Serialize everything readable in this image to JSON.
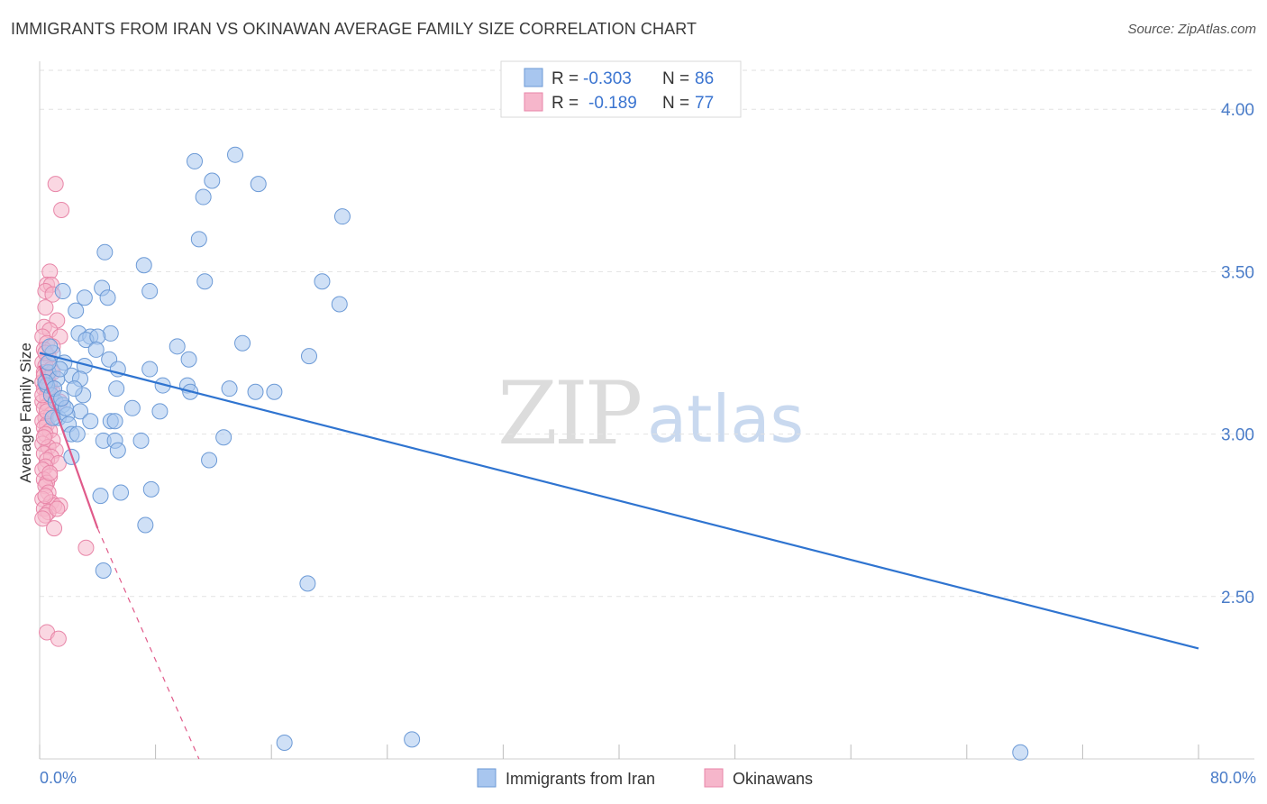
{
  "title": "IMMIGRANTS FROM IRAN VS OKINAWAN AVERAGE FAMILY SIZE CORRELATION CHART",
  "source": "Source: ZipAtlas.com",
  "watermark": {
    "zip": "ZIP",
    "atlas": "atlas"
  },
  "legend_top": {
    "rows": [
      {
        "r_label": "R =",
        "r_value": "-0.303",
        "n_label": "N =",
        "n_value": "86"
      },
      {
        "r_label": "R =",
        "r_value": "-0.189",
        "n_label": "N =",
        "n_value": "77"
      }
    ]
  },
  "legend_bottom": [
    "Immigrants from Iran",
    "Okinawans"
  ],
  "colors": {
    "blue_fill": "#a8c6ef",
    "blue_stroke": "#6c9ad6",
    "blue_line": "#2f74d0",
    "pink_fill": "#f6b6cb",
    "pink_stroke": "#e886a8",
    "pink_line": "#e05a8a",
    "grid": "#e2e2e2",
    "tick_text": "#4a7cc8"
  },
  "chart_data": {
    "type": "scatter",
    "title": "IMMIGRANTS FROM IRAN VS OKINAWAN AVERAGE FAMILY SIZE CORRELATION CHART",
    "xlabel": "",
    "ylabel": "Average Family Size",
    "xlim": [
      0,
      80
    ],
    "ylim": [
      2.0,
      4.12
    ],
    "x_tick_labels": [
      "0.0%",
      "80.0%"
    ],
    "y_ticks": [
      2.5,
      3.0,
      3.5,
      4.0
    ],
    "y_tick_labels": [
      "2.50",
      "3.00",
      "3.50",
      "4.00"
    ],
    "grid": "horizontal dashed",
    "legend_position": "top-center",
    "series": [
      {
        "name": "Immigrants from Iran",
        "r": -0.303,
        "n": 86,
        "trend": {
          "x": [
            0,
            80
          ],
          "y": [
            3.25,
            2.34
          ],
          "style": "solid"
        },
        "points": [
          [
            10.7,
            3.84
          ],
          [
            13.5,
            3.86
          ],
          [
            11.3,
            3.73
          ],
          [
            11.9,
            3.78
          ],
          [
            15.1,
            3.77
          ],
          [
            20.9,
            3.67
          ],
          [
            11.0,
            3.6
          ],
          [
            4.5,
            3.56
          ],
          [
            7.2,
            3.52
          ],
          [
            11.4,
            3.47
          ],
          [
            19.5,
            3.47
          ],
          [
            7.6,
            3.44
          ],
          [
            4.3,
            3.45
          ],
          [
            3.1,
            3.42
          ],
          [
            1.6,
            3.44
          ],
          [
            4.7,
            3.42
          ],
          [
            20.7,
            3.4
          ],
          [
            2.5,
            3.38
          ],
          [
            2.7,
            3.31
          ],
          [
            3.5,
            3.3
          ],
          [
            4.9,
            3.31
          ],
          [
            3.2,
            3.29
          ],
          [
            4.0,
            3.3
          ],
          [
            14.0,
            3.28
          ],
          [
            9.5,
            3.27
          ],
          [
            0.9,
            3.25
          ],
          [
            18.6,
            3.24
          ],
          [
            1.7,
            3.22
          ],
          [
            2.2,
            3.18
          ],
          [
            4.8,
            3.23
          ],
          [
            10.3,
            3.23
          ],
          [
            3.1,
            3.21
          ],
          [
            5.4,
            3.2
          ],
          [
            7.6,
            3.2
          ],
          [
            0.6,
            3.19
          ],
          [
            1.2,
            3.17
          ],
          [
            2.8,
            3.17
          ],
          [
            8.5,
            3.15
          ],
          [
            10.2,
            3.15
          ],
          [
            13.1,
            3.14
          ],
          [
            5.3,
            3.14
          ],
          [
            10.4,
            3.13
          ],
          [
            14.9,
            3.13
          ],
          [
            16.2,
            3.13
          ],
          [
            0.5,
            3.15
          ],
          [
            0.8,
            3.12
          ],
          [
            3.0,
            3.12
          ],
          [
            1.1,
            3.1
          ],
          [
            1.6,
            3.09
          ],
          [
            6.4,
            3.08
          ],
          [
            2.8,
            3.07
          ],
          [
            8.3,
            3.07
          ],
          [
            1.3,
            3.05
          ],
          [
            1.9,
            3.06
          ],
          [
            4.9,
            3.04
          ],
          [
            5.2,
            3.04
          ],
          [
            3.5,
            3.04
          ],
          [
            2.0,
            3.03
          ],
          [
            2.2,
            3.0
          ],
          [
            4.4,
            2.98
          ],
          [
            5.2,
            2.98
          ],
          [
            7.0,
            2.98
          ],
          [
            12.7,
            2.99
          ],
          [
            5.4,
            2.95
          ],
          [
            2.2,
            2.93
          ],
          [
            11.7,
            2.92
          ],
          [
            7.7,
            2.83
          ],
          [
            4.2,
            2.81
          ],
          [
            5.6,
            2.82
          ],
          [
            7.3,
            2.72
          ],
          [
            4.4,
            2.58
          ],
          [
            18.5,
            2.54
          ],
          [
            16.9,
            2.05
          ],
          [
            25.7,
            2.06
          ],
          [
            67.7,
            2.02
          ],
          [
            0.7,
            3.27
          ],
          [
            1.4,
            3.2
          ],
          [
            0.4,
            3.16
          ],
          [
            1.0,
            3.14
          ],
          [
            0.9,
            3.05
          ],
          [
            2.6,
            3.0
          ],
          [
            1.8,
            3.08
          ],
          [
            3.9,
            3.26
          ],
          [
            0.6,
            3.22
          ],
          [
            1.5,
            3.11
          ],
          [
            2.4,
            3.14
          ]
        ]
      },
      {
        "name": "Okinawans",
        "r": -0.189,
        "n": 77,
        "trend": {
          "x": [
            0,
            4.0
          ],
          "y": [
            3.21,
            2.71
          ],
          "style": "solid",
          "extended_to": [
            11.0,
            2.0
          ],
          "extended_style": "dashed"
        },
        "points": [
          [
            1.1,
            3.77
          ],
          [
            1.5,
            3.69
          ],
          [
            0.7,
            3.5
          ],
          [
            0.5,
            3.46
          ],
          [
            0.8,
            3.46
          ],
          [
            0.4,
            3.44
          ],
          [
            0.9,
            3.43
          ],
          [
            0.4,
            3.39
          ],
          [
            1.2,
            3.35
          ],
          [
            0.3,
            3.33
          ],
          [
            0.7,
            3.32
          ],
          [
            1.4,
            3.3
          ],
          [
            0.2,
            3.3
          ],
          [
            0.5,
            3.28
          ],
          [
            0.9,
            3.27
          ],
          [
            0.3,
            3.26
          ],
          [
            0.6,
            3.24
          ],
          [
            0.2,
            3.22
          ],
          [
            0.4,
            3.21
          ],
          [
            0.8,
            3.2
          ],
          [
            0.3,
            3.19
          ],
          [
            0.6,
            3.18
          ],
          [
            0.5,
            3.17
          ],
          [
            0.2,
            3.16
          ],
          [
            0.7,
            3.15
          ],
          [
            0.4,
            3.15
          ],
          [
            0.3,
            3.14
          ],
          [
            0.9,
            3.13
          ],
          [
            0.5,
            3.12
          ],
          [
            1.4,
            3.1
          ],
          [
            0.2,
            3.1
          ],
          [
            0.6,
            3.09
          ],
          [
            0.3,
            3.08
          ],
          [
            0.8,
            3.06
          ],
          [
            0.4,
            3.05
          ],
          [
            0.2,
            3.04
          ],
          [
            0.5,
            3.03
          ],
          [
            0.3,
            3.02
          ],
          [
            0.7,
            3.01
          ],
          [
            0.4,
            3.0
          ],
          [
            0.9,
            2.98
          ],
          [
            0.2,
            2.97
          ],
          [
            0.6,
            2.96
          ],
          [
            1.1,
            2.95
          ],
          [
            0.3,
            2.94
          ],
          [
            0.8,
            2.93
          ],
          [
            0.5,
            2.92
          ],
          [
            1.3,
            2.91
          ],
          [
            0.4,
            2.9
          ],
          [
            0.2,
            2.89
          ],
          [
            0.7,
            2.87
          ],
          [
            0.3,
            2.86
          ],
          [
            0.5,
            2.85
          ],
          [
            0.4,
            2.84
          ],
          [
            0.6,
            2.82
          ],
          [
            0.2,
            2.8
          ],
          [
            0.8,
            2.79
          ],
          [
            1.0,
            2.78
          ],
          [
            1.4,
            2.78
          ],
          [
            0.3,
            2.77
          ],
          [
            0.6,
            2.76
          ],
          [
            0.4,
            2.75
          ],
          [
            0.2,
            2.74
          ],
          [
            1.0,
            2.71
          ],
          [
            3.2,
            2.65
          ],
          [
            0.5,
            2.39
          ],
          [
            1.3,
            2.37
          ],
          [
            0.3,
            3.18
          ],
          [
            0.6,
            3.14
          ],
          [
            0.2,
            3.12
          ],
          [
            0.4,
            3.25
          ],
          [
            0.9,
            3.19
          ],
          [
            0.5,
            3.07
          ],
          [
            0.3,
            2.99
          ],
          [
            0.7,
            2.88
          ],
          [
            0.4,
            2.81
          ],
          [
            1.2,
            2.77
          ]
        ]
      }
    ]
  }
}
